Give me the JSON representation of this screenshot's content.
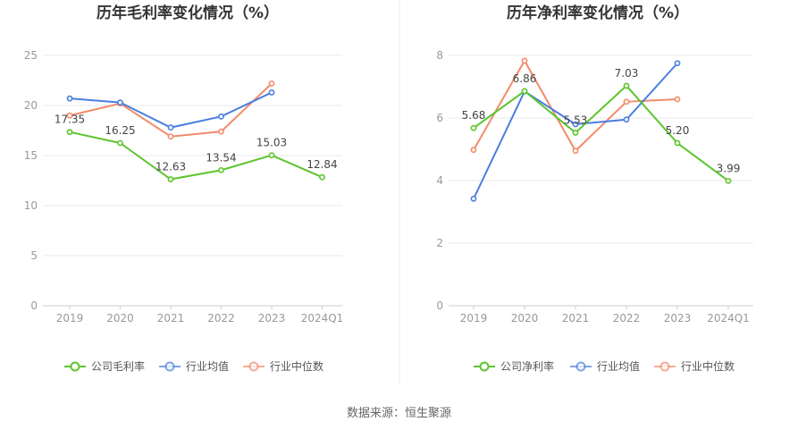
{
  "source": "数据来源：恒生聚源",
  "chart_data": [
    {
      "type": "line",
      "title": "历年毛利率变化情况（%）",
      "categories": [
        "2019",
        "2020",
        "2021",
        "2022",
        "2023",
        "2024Q1"
      ],
      "ylim": [
        0,
        25
      ],
      "yticks": [
        0,
        5,
        10,
        15,
        20,
        25
      ],
      "grid": true,
      "legend_position": "bottom",
      "labeled_series": 0,
      "series": [
        {
          "name": "公司毛利率",
          "color": "#5cc52e",
          "values": [
            17.35,
            16.25,
            12.63,
            13.54,
            15.03,
            12.84
          ],
          "labels": [
            "17.35",
            "16.25",
            "12.63",
            "13.54",
            "15.03",
            "12.84"
          ]
        },
        {
          "name": "行业均值",
          "color": "#4a7ee0",
          "values": [
            20.7,
            20.3,
            17.8,
            18.9,
            21.3,
            null
          ]
        },
        {
          "name": "行业中位数",
          "color": "#f38b6a",
          "values": [
            19.0,
            20.2,
            16.9,
            17.4,
            22.2,
            null
          ]
        }
      ]
    },
    {
      "type": "line",
      "title": "历年净利率变化情况（%）",
      "categories": [
        "2019",
        "2020",
        "2021",
        "2022",
        "2023",
        "2024Q1"
      ],
      "ylim": [
        0,
        8
      ],
      "yticks": [
        0,
        2,
        4,
        6,
        8
      ],
      "grid": true,
      "legend_position": "bottom",
      "labeled_series": 0,
      "series": [
        {
          "name": "公司净利率",
          "color": "#5cc52e",
          "values": [
            5.68,
            6.86,
            5.53,
            7.03,
            5.2,
            3.99
          ],
          "labels": [
            "5.68",
            "6.86",
            "5.53",
            "7.03",
            "5.20",
            "3.99"
          ]
        },
        {
          "name": "行业均值",
          "color": "#4a7ee0",
          "values": [
            3.42,
            6.85,
            5.8,
            5.95,
            7.75,
            null
          ]
        },
        {
          "name": "行业中位数",
          "color": "#f38b6a",
          "values": [
            4.98,
            7.83,
            4.95,
            6.52,
            6.6,
            null
          ]
        }
      ]
    }
  ]
}
